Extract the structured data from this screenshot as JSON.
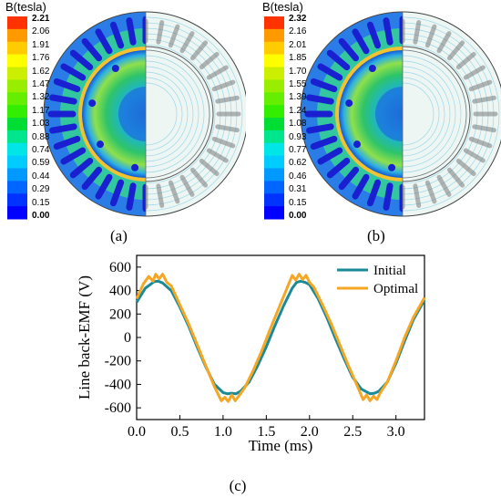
{
  "colorbar_colors": [
    "#0000ff",
    "#0033ff",
    "#0066ff",
    "#0099ff",
    "#00ccff",
    "#00e5e5",
    "#00e68c",
    "#00dd33",
    "#33ee00",
    "#66ee00",
    "#99ee00",
    "#ccee00",
    "#ffff00",
    "#ffcc00",
    "#ff9900",
    "#ff3300"
  ],
  "panel_a": {
    "colorbar_title": "B(tesla)",
    "ticks": [
      "2.21",
      "2.06",
      "1.91",
      "1.76",
      "1.62",
      "1.47",
      "1.32",
      "1.17",
      "1.03",
      "0.88",
      "0.74",
      "0.59",
      "0.44",
      "0.29",
      "0.15",
      "0.00"
    ],
    "label": "(a)"
  },
  "panel_b": {
    "colorbar_title": "B(tesla)",
    "ticks": [
      "2.32",
      "2.16",
      "2.01",
      "1.85",
      "1.70",
      "1.55",
      "1.39",
      "1.24",
      "1.08",
      "0.93",
      "0.77",
      "0.62",
      "0.46",
      "0.31",
      "0.15",
      "0.00"
    ],
    "label": "(b)"
  },
  "panel_c": {
    "label": "(c)"
  },
  "chart_data": {
    "type": "line",
    "xlabel": "Time (ms)",
    "ylabel": "Line back-EMF (V)",
    "xlim": [
      0.0,
      3.33
    ],
    "ylim": [
      -700,
      700
    ],
    "xticks": [
      "0.0",
      "0.5",
      "1.0",
      "1.5",
      "2.0",
      "2.5",
      "3.0"
    ],
    "yticks": [
      "600",
      "400",
      "200",
      "0",
      "-200",
      "-400",
      "-600"
    ],
    "legend_position": "top-right",
    "series": [
      {
        "name": "Initial",
        "color": "#1a8a99",
        "x": [
          0.0,
          0.1,
          0.2,
          0.25,
          0.3,
          0.4,
          0.5,
          0.6,
          0.7,
          0.8,
          0.9,
          1.0,
          1.05,
          1.1,
          1.15,
          1.2,
          1.3,
          1.4,
          1.5,
          1.6,
          1.7,
          1.8,
          1.85,
          1.9,
          1.95,
          2.0,
          2.1,
          2.2,
          2.3,
          2.4,
          2.5,
          2.6,
          2.7,
          2.75,
          2.8,
          2.9,
          3.0,
          3.1,
          3.2,
          3.33
        ],
        "y": [
          300,
          420,
          475,
          480,
          465,
          400,
          260,
          100,
          -80,
          -250,
          -400,
          -470,
          -480,
          -475,
          -480,
          -460,
          -380,
          -240,
          -80,
          100,
          270,
          420,
          470,
          480,
          470,
          450,
          330,
          170,
          -10,
          -180,
          -340,
          -440,
          -480,
          -475,
          -460,
          -380,
          -220,
          -30,
          150,
          320
        ]
      },
      {
        "name": "Optimal",
        "color": "#f5a623",
        "x": [
          0.0,
          0.08,
          0.14,
          0.19,
          0.22,
          0.26,
          0.3,
          0.35,
          0.4,
          0.5,
          0.6,
          0.7,
          0.8,
          0.9,
          0.98,
          1.02,
          1.06,
          1.1,
          1.14,
          1.18,
          1.25,
          1.35,
          1.45,
          1.55,
          1.65,
          1.75,
          1.8,
          1.84,
          1.88,
          1.92,
          1.96,
          2.0,
          2.05,
          2.15,
          2.25,
          2.35,
          2.45,
          2.55,
          2.62,
          2.66,
          2.7,
          2.74,
          2.78,
          2.82,
          2.9,
          3.0,
          3.1,
          3.2,
          3.33
        ],
        "y": [
          330,
          460,
          520,
          480,
          540,
          500,
          540,
          470,
          440,
          280,
          120,
          -60,
          -240,
          -420,
          -540,
          -510,
          -545,
          -490,
          -540,
          -500,
          -430,
          -280,
          -110,
          80,
          260,
          440,
          530,
          490,
          540,
          495,
          530,
          470,
          430,
          280,
          120,
          -60,
          -240,
          -410,
          -530,
          -490,
          -540,
          -500,
          -530,
          -470,
          -380,
          -200,
          0,
          170,
          340
        ]
      }
    ]
  }
}
